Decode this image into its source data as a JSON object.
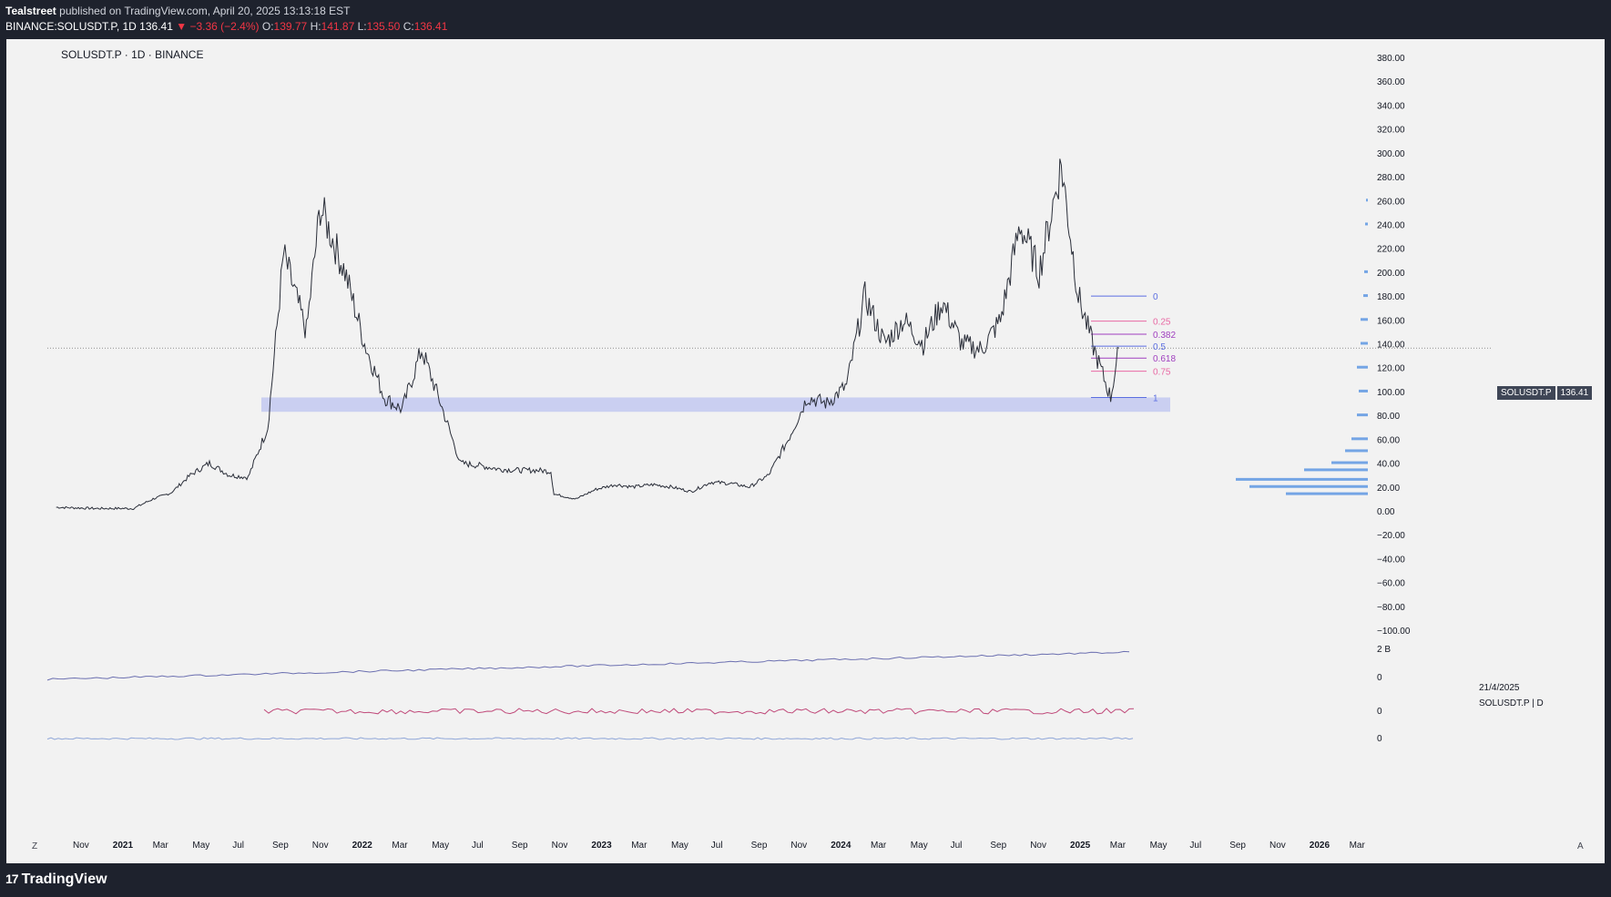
{
  "header": {
    "author": "Tealstreet",
    "published": "published on TradingView.com, April 20, 2025 13:13:18 EST",
    "ticker": "BINANCE:SOLUSDT.P, 1D",
    "last": "136.41",
    "change_arrow": "▼",
    "change": "−3.36 (−2.4%)",
    "o_label": "O:",
    "o_value": "139.77",
    "h_label": "H:",
    "h_value": "141.87",
    "l_label": "L:",
    "l_value": "135.50",
    "c_label": "C:",
    "c_value": "136.41"
  },
  "symbol_line": "SOLUSDT.P · 1D · BINANCE",
  "price_tag": {
    "symbol": "SOLUSDT.P",
    "value": "136.41"
  },
  "date_stamp": "21/4/2025",
  "symbol_stamp": "SOLUSDT.P | D",
  "corner_left": "Z",
  "corner_right": "A",
  "brand": {
    "mark": "17",
    "name": "TradingView"
  },
  "colors": {
    "background": "#f2f2f2",
    "frame": "#1e222d",
    "candles": "#2a2e39",
    "zone": "#c5cbf1",
    "fib_blue": "#5b6ee1",
    "fib_pink": "#e86aa4",
    "fib_purple": "#a03fbf",
    "volume_profile": "#4a8be0",
    "down": "#f23645"
  },
  "chart_data": {
    "type": "line",
    "title": "SOLUSDT.P · 1D · BINANCE",
    "ylim": [
      -100,
      380
    ],
    "y_ticks": [
      "380.00",
      "360.00",
      "340.00",
      "320.00",
      "300.00",
      "280.00",
      "260.00",
      "240.00",
      "220.00",
      "200.00",
      "180.00",
      "160.00",
      "140.00",
      "120.00",
      "100.00",
      "80.00",
      "60.00",
      "40.00",
      "20.00",
      "0.00",
      "−20.00",
      "−40.00",
      "−60.00",
      "−80.00",
      "−100.00"
    ],
    "x_ticks": [
      "Nov",
      "2021",
      "Mar",
      "May",
      "Jul",
      "Sep",
      "Nov",
      "2022",
      "Mar",
      "May",
      "Jul",
      "Sep",
      "Nov",
      "2023",
      "Mar",
      "May",
      "Jul",
      "Sep",
      "Nov",
      "2024",
      "Mar",
      "May",
      "Jul",
      "Sep",
      "Nov",
      "2025",
      "Mar",
      "May",
      "Jul",
      "Sep",
      "Nov",
      "2026",
      "Mar"
    ],
    "series": [
      {
        "x": [
          "2020-09",
          "2020-11",
          "2021-01",
          "2021-02",
          "2021-03",
          "2021-04",
          "2021-05",
          "2021-06",
          "2021-07",
          "2021-08",
          "2021-09-09",
          "2021-10",
          "2021-11-06",
          "2021-12",
          "2022-01",
          "2022-02",
          "2022-03",
          "2022-04",
          "2022-05",
          "2022-06",
          "2022-07",
          "2022-08",
          "2022-09",
          "2022-10",
          "2022-11-05",
          "2022-11-10",
          "2022-12",
          "2023-01",
          "2023-02",
          "2023-03",
          "2023-04",
          "2023-05",
          "2023-06",
          "2023-07",
          "2023-08",
          "2023-09",
          "2023-10",
          "2023-11",
          "2023-12",
          "2024-01",
          "2024-02",
          "2024-03",
          "2024-04",
          "2024-05",
          "2024-06",
          "2024-07",
          "2024-08",
          "2024-09",
          "2024-10",
          "2024-11",
          "2024-12",
          "2025-01-19",
          "2025-02",
          "2025-03",
          "2025-04-07",
          "2025-04-20"
        ],
        "values": [
          3,
          2,
          2,
          10,
          15,
          30,
          40,
          30,
          28,
          70,
          215,
          150,
          255,
          200,
          140,
          95,
          85,
          135,
          90,
          40,
          38,
          35,
          34,
          34,
          33,
          14,
          10,
          18,
          22,
          20,
          22,
          20,
          16,
          24,
          23,
          20,
          30,
          60,
          95,
          90,
          105,
          180,
          140,
          160,
          140,
          175,
          140,
          135,
          160,
          240,
          200,
          290,
          180,
          130,
          95,
          136.41
        ]
      }
    ],
    "support_zone": [
      83,
      95
    ],
    "fib_levels": [
      {
        "label": "0",
        "price": 180
      },
      {
        "label": "0.25",
        "price": 159
      },
      {
        "label": "0.382",
        "price": 148
      },
      {
        "label": "0.5",
        "price": 138
      },
      {
        "label": "0.618",
        "price": 128
      },
      {
        "label": "0.75",
        "price": 117
      },
      {
        "label": "1",
        "price": 95
      }
    ],
    "last_price": 136.41,
    "indicator_labels": [
      "2 B",
      "0",
      "0",
      "0"
    ]
  }
}
